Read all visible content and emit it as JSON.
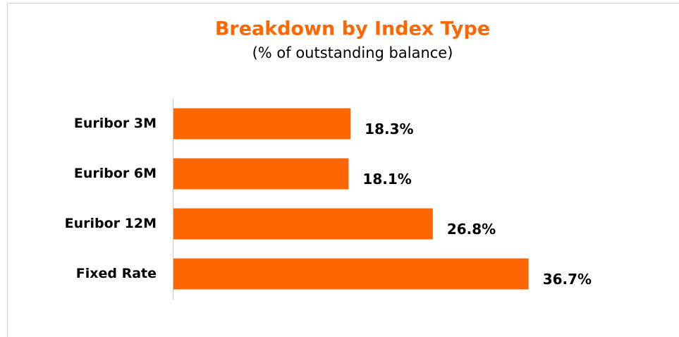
{
  "chart_data": {
    "type": "hbar",
    "title": "Breakdown by Index Type",
    "subtitle": "(% of outstanding balance)",
    "categories": [
      "Euribor 3M",
      "Euribor 6M",
      "Euribor 12M",
      "Fixed Rate"
    ],
    "values": [
      18.3,
      18.1,
      26.8,
      36.7
    ],
    "value_labels": [
      "18.3%",
      "18.1%",
      "26.8%",
      "36.7%"
    ],
    "color": "#ff6600",
    "xlim": [
      0,
      40
    ]
  }
}
